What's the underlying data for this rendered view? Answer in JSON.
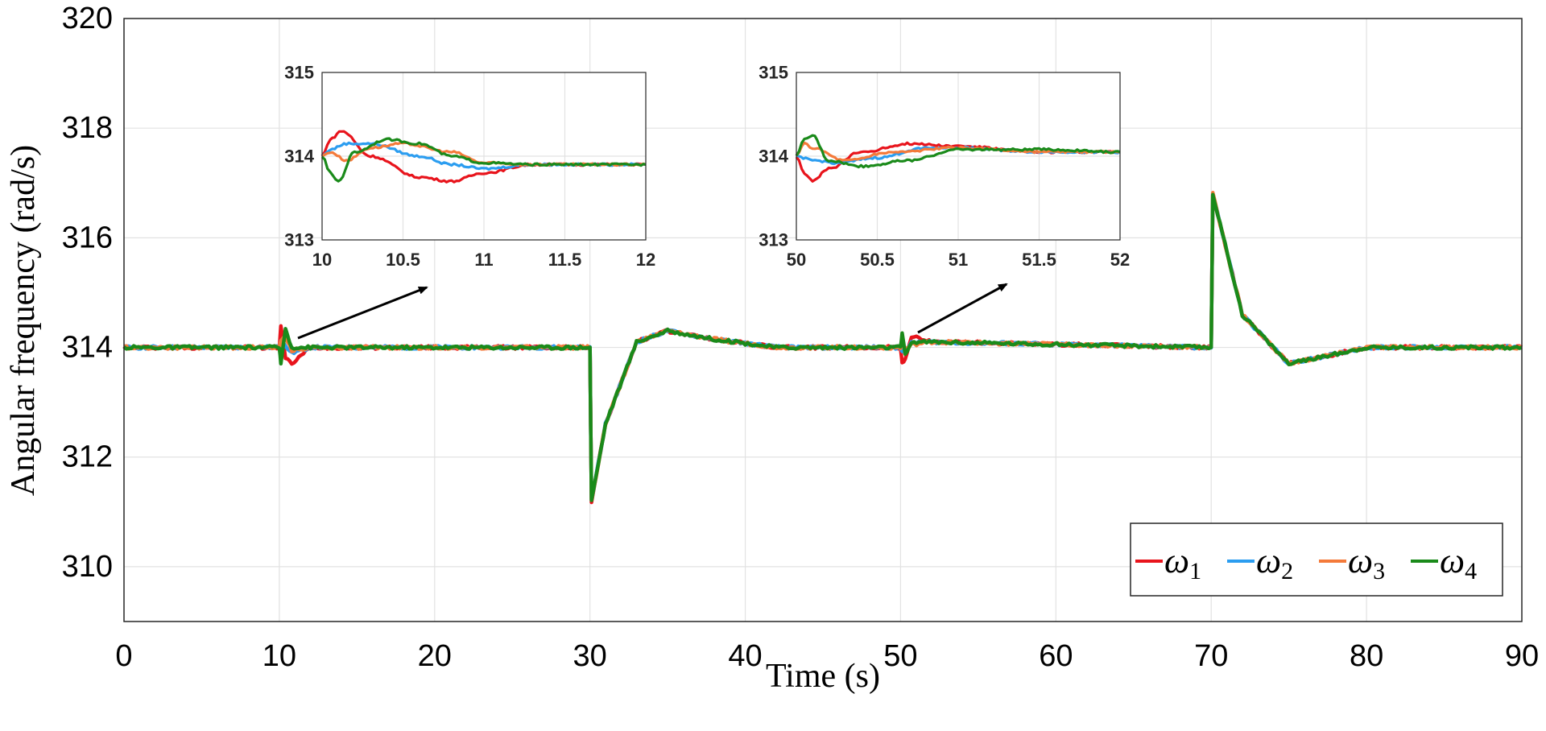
{
  "chart_data": [
    {
      "type": "line",
      "xlabel": "Time (s)",
      "ylabel": "Angular frequency (rad/s)",
      "xlim": [
        0,
        90
      ],
      "ylim": [
        309,
        320
      ],
      "xticks": [
        "0",
        "10",
        "20",
        "30",
        "40",
        "50",
        "60",
        "70",
        "80",
        "90"
      ],
      "yticks": [
        "310",
        "312",
        "314",
        "316",
        "318",
        "320"
      ],
      "grid": true,
      "legend": {
        "placement": "bottom-right",
        "entries": [
          {
            "symbol": "ω",
            "sub": "1"
          },
          {
            "symbol": "ω",
            "sub": "2"
          },
          {
            "symbol": "ω",
            "sub": "3"
          },
          {
            "symbol": "ω",
            "sub": "4"
          }
        ]
      },
      "colors": {
        "omega1": "#e8141c",
        "omega2": "#2b9df0",
        "omega3": "#f47a3a",
        "omega4": "#1a8a1a"
      },
      "series": [
        {
          "name": "ω1",
          "x": [
            0,
            10,
            10.1,
            10.4,
            10.8,
            12,
            30,
            30.1,
            31,
            33,
            35,
            38,
            42,
            50,
            50.1,
            50.3,
            50.7,
            52,
            70,
            70.1,
            72,
            75,
            80,
            90
          ],
          "y": [
            314,
            314,
            314.4,
            313.8,
            313.7,
            314,
            314,
            311.2,
            312.6,
            314.1,
            314.3,
            314.15,
            314,
            314,
            313.7,
            313.8,
            314.2,
            314.1,
            314,
            316.8,
            314.6,
            313.7,
            314,
            314
          ]
        },
        {
          "name": "ω2",
          "x": [
            0,
            10,
            10.1,
            10.4,
            10.8,
            12,
            30,
            30.1,
            31,
            33,
            35,
            38,
            42,
            50,
            50.1,
            50.3,
            50.7,
            52,
            70,
            70.1,
            72,
            75,
            80,
            90
          ],
          "y": [
            314,
            314,
            314.15,
            314.05,
            313.9,
            314,
            314,
            311.2,
            312.6,
            314.1,
            314.3,
            314.15,
            314,
            314,
            313.95,
            313.9,
            314.1,
            314.1,
            314,
            316.8,
            314.6,
            313.7,
            314,
            314
          ]
        },
        {
          "name": "ω3",
          "x": [
            0,
            10,
            10.1,
            10.4,
            10.8,
            12,
            30,
            30.1,
            31,
            33,
            35,
            38,
            42,
            50,
            50.1,
            50.3,
            50.7,
            52,
            70,
            70.1,
            72,
            75,
            80,
            90
          ],
          "y": [
            314,
            314,
            314.1,
            314.2,
            313.95,
            314,
            314,
            311.2,
            312.6,
            314.1,
            314.3,
            314.15,
            314,
            314,
            314.1,
            313.95,
            314.05,
            314.1,
            314,
            316.8,
            314.6,
            313.7,
            314,
            314
          ]
        },
        {
          "name": "ω4",
          "x": [
            0,
            10,
            10.1,
            10.4,
            10.8,
            12,
            30,
            30.1,
            31,
            33,
            35,
            38,
            42,
            50,
            50.1,
            50.3,
            50.7,
            52,
            70,
            70.1,
            72,
            75,
            80,
            90
          ],
          "y": [
            314,
            314,
            313.7,
            314.35,
            314.0,
            314,
            314,
            311.2,
            312.6,
            314.1,
            314.3,
            314.15,
            314,
            314,
            314.25,
            313.85,
            314.1,
            314.1,
            314,
            316.8,
            314.6,
            313.7,
            314,
            314
          ]
        }
      ]
    },
    {
      "type": "line",
      "xlim": [
        10,
        12
      ],
      "ylim": [
        313,
        315
      ],
      "xticks": [
        "10",
        "10.5",
        "11",
        "11.5",
        "12"
      ],
      "yticks": [
        "313",
        "314",
        "315"
      ],
      "grid": true,
      "series": [
        {
          "name": "ω1",
          "x": [
            10,
            10.05,
            10.12,
            10.3,
            10.6,
            10.8,
            11.0,
            11.3,
            12
          ],
          "y": [
            314,
            314.2,
            314.3,
            314.0,
            313.75,
            313.7,
            313.8,
            313.9,
            313.9
          ]
        },
        {
          "name": "ω2",
          "x": [
            10,
            10.05,
            10.15,
            10.3,
            10.6,
            10.8,
            11.0,
            11.3,
            12
          ],
          "y": [
            314,
            314.08,
            314.15,
            314.15,
            314.0,
            313.9,
            313.85,
            313.9,
            313.9
          ]
        },
        {
          "name": "ω3",
          "x": [
            10,
            10.05,
            10.15,
            10.3,
            10.5,
            10.8,
            11.0,
            11.3,
            12
          ],
          "y": [
            314,
            314.05,
            313.95,
            314.1,
            314.15,
            314.05,
            313.92,
            313.9,
            313.9
          ]
        },
        {
          "name": "ω4",
          "x": [
            10,
            10.05,
            10.1,
            10.2,
            10.4,
            10.6,
            10.8,
            11.0,
            11.3,
            12
          ],
          "y": [
            314,
            313.8,
            313.7,
            314.05,
            314.2,
            314.15,
            314.0,
            313.92,
            313.9,
            313.9
          ]
        }
      ]
    },
    {
      "type": "line",
      "xlim": [
        50,
        52
      ],
      "ylim": [
        313,
        315
      ],
      "xticks": [
        "50",
        "50.5",
        "51",
        "51.5",
        "52"
      ],
      "yticks": [
        "313",
        "314",
        "315"
      ],
      "grid": true,
      "series": [
        {
          "name": "ω1",
          "x": [
            50,
            50.05,
            50.1,
            50.2,
            50.4,
            50.7,
            51.0,
            51.5,
            52
          ],
          "y": [
            314,
            313.8,
            313.7,
            313.85,
            314.05,
            314.15,
            314.12,
            314.05,
            314.05
          ]
        },
        {
          "name": "ω2",
          "x": [
            50,
            50.1,
            50.25,
            50.5,
            50.8,
            51.0,
            51.5,
            52
          ],
          "y": [
            314,
            313.95,
            313.92,
            313.98,
            314.1,
            314.1,
            314.05,
            314.05
          ]
        },
        {
          "name": "ω3",
          "x": [
            50,
            50.05,
            50.1,
            50.3,
            50.6,
            51.0,
            51.5,
            52
          ],
          "y": [
            314,
            314.15,
            314.1,
            313.95,
            314.05,
            314.1,
            314.05,
            314.05
          ]
        },
        {
          "name": "ω4",
          "x": [
            50,
            50.05,
            50.1,
            50.2,
            50.4,
            50.7,
            51.0,
            51.5,
            52
          ],
          "y": [
            314,
            314.2,
            314.25,
            313.95,
            313.88,
            313.95,
            314.08,
            314.08,
            314.05
          ]
        }
      ]
    }
  ]
}
